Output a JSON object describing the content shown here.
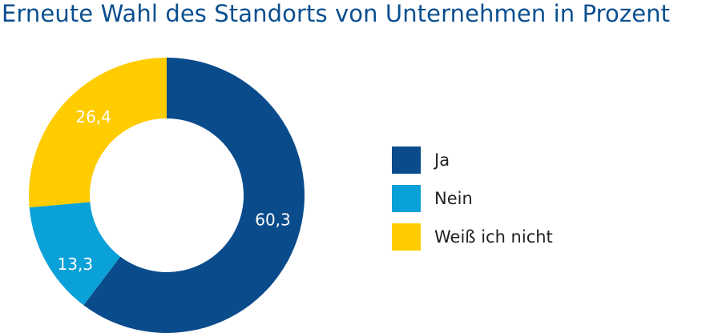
{
  "chart_data": {
    "type": "pie",
    "title": "Erneute Wahl des Standorts von Unternehmen in Prozent",
    "categories": [
      "Ja",
      "Nein",
      "Weiß ich nicht"
    ],
    "values": [
      60.3,
      13.3,
      26.4
    ],
    "value_labels": [
      "60,3",
      "13,3",
      "26,4"
    ],
    "colors": [
      "#0a4b8c",
      "#0aa0d8",
      "#ffcc00"
    ],
    "donut": true,
    "legend_position": "right"
  }
}
